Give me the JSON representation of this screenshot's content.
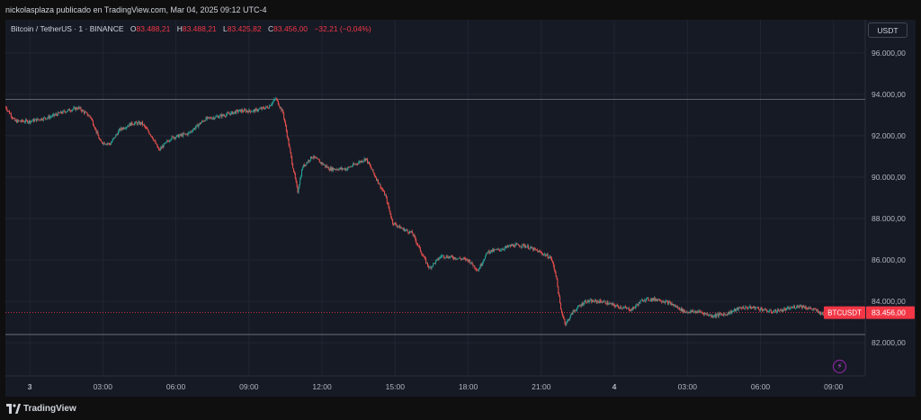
{
  "header": {
    "publisher_line": "nickolasplaza publicado en TradingView.com, Mar 04, 2025 09:12 UTC-4"
  },
  "legend": {
    "symbol": "Bitcoin / TetherUS · 1 · BINANCE",
    "open_key": "O",
    "open": "83.488,21",
    "high_key": "H",
    "high": "83.488,21",
    "low_key": "L",
    "low": "83.425,82",
    "close_key": "C",
    "close": "83.456,00",
    "change": "−32,21 (−0,04%)"
  },
  "toolbar": {
    "currency_label": "USDT"
  },
  "colors": {
    "background": "#161a25",
    "up": "#26a69a",
    "down": "#ef5350",
    "grid": "#222633",
    "price_line": "#f23645",
    "text": "#b2b5be"
  },
  "chart_data": {
    "type": "candlestick",
    "symbol": "BTCUSDT",
    "interval": "1",
    "exchange": "BINANCE",
    "y_tick_labels": [
      "82.000,00",
      "84.000,00",
      "86.000,00",
      "88.000,00",
      "90.000,00",
      "92.000,00",
      "94.000,00",
      "96.000,00"
    ],
    "y_tick_values": [
      82000,
      84000,
      86000,
      88000,
      90000,
      92000,
      94000,
      96000
    ],
    "ylim": [
      80400,
      97600
    ],
    "x_tick_labels": [
      "3",
      "03:00",
      "06:00",
      "09:00",
      "12:00",
      "15:00",
      "18:00",
      "21:00",
      "4",
      "03:00",
      "06:00",
      "09:00"
    ],
    "x_tick_hours": [
      0,
      3,
      6,
      9,
      12,
      15,
      18,
      21,
      24,
      27,
      30,
      33
    ],
    "x_axis_day_labels": [
      "3",
      "4"
    ],
    "xlim_hours": [
      -1.0,
      34.3
    ],
    "last_price": 83456,
    "last_price_label": "83.456,00",
    "last_price_tag": "BTCUSDT",
    "horizontal_lines": [
      93750,
      82400
    ],
    "path_points": [
      {
        "t": -1.0,
        "p": 93400
      },
      {
        "t": -0.6,
        "p": 92700
      },
      {
        "t": 0.0,
        "p": 92700
      },
      {
        "t": 0.8,
        "p": 92900
      },
      {
        "t": 1.5,
        "p": 93200
      },
      {
        "t": 2.0,
        "p": 93350
      },
      {
        "t": 2.5,
        "p": 92900
      },
      {
        "t": 2.9,
        "p": 91700
      },
      {
        "t": 3.3,
        "p": 91600
      },
      {
        "t": 3.7,
        "p": 92300
      },
      {
        "t": 4.2,
        "p": 92600
      },
      {
        "t": 4.6,
        "p": 92600
      },
      {
        "t": 5.0,
        "p": 92000
      },
      {
        "t": 5.3,
        "p": 91300
      },
      {
        "t": 5.8,
        "p": 91900
      },
      {
        "t": 6.5,
        "p": 92100
      },
      {
        "t": 7.2,
        "p": 92800
      },
      {
        "t": 8.0,
        "p": 93000
      },
      {
        "t": 8.6,
        "p": 93200
      },
      {
        "t": 9.2,
        "p": 93200
      },
      {
        "t": 9.8,
        "p": 93400
      },
      {
        "t": 10.1,
        "p": 93800
      },
      {
        "t": 10.4,
        "p": 93100
      },
      {
        "t": 10.8,
        "p": 90500
      },
      {
        "t": 11.0,
        "p": 89300
      },
      {
        "t": 11.2,
        "p": 90500
      },
      {
        "t": 11.6,
        "p": 91000
      },
      {
        "t": 12.3,
        "p": 90400
      },
      {
        "t": 13.0,
        "p": 90400
      },
      {
        "t": 13.8,
        "p": 90900
      },
      {
        "t": 14.2,
        "p": 90000
      },
      {
        "t": 14.6,
        "p": 89100
      },
      {
        "t": 14.9,
        "p": 87800
      },
      {
        "t": 15.3,
        "p": 87500
      },
      {
        "t": 15.7,
        "p": 87300
      },
      {
        "t": 16.1,
        "p": 86300
      },
      {
        "t": 16.4,
        "p": 85600
      },
      {
        "t": 16.9,
        "p": 86200
      },
      {
        "t": 17.5,
        "p": 86100
      },
      {
        "t": 18.0,
        "p": 86000
      },
      {
        "t": 18.4,
        "p": 85500
      },
      {
        "t": 18.8,
        "p": 86400
      },
      {
        "t": 19.3,
        "p": 86500
      },
      {
        "t": 19.8,
        "p": 86700
      },
      {
        "t": 20.3,
        "p": 86700
      },
      {
        "t": 20.9,
        "p": 86400
      },
      {
        "t": 21.4,
        "p": 86100
      },
      {
        "t": 21.6,
        "p": 85300
      },
      {
        "t": 21.8,
        "p": 83600
      },
      {
        "t": 22.0,
        "p": 82900
      },
      {
        "t": 22.3,
        "p": 83500
      },
      {
        "t": 22.8,
        "p": 84000
      },
      {
        "t": 23.5,
        "p": 84000
      },
      {
        "t": 24.0,
        "p": 83800
      },
      {
        "t": 24.7,
        "p": 83600
      },
      {
        "t": 25.2,
        "p": 84100
      },
      {
        "t": 25.8,
        "p": 84100
      },
      {
        "t": 26.3,
        "p": 83900
      },
      {
        "t": 26.9,
        "p": 83500
      },
      {
        "t": 27.5,
        "p": 83500
      },
      {
        "t": 28.0,
        "p": 83300
      },
      {
        "t": 28.6,
        "p": 83400
      },
      {
        "t": 29.2,
        "p": 83700
      },
      {
        "t": 29.8,
        "p": 83700
      },
      {
        "t": 30.4,
        "p": 83500
      },
      {
        "t": 31.0,
        "p": 83600
      },
      {
        "t": 31.6,
        "p": 83800
      },
      {
        "t": 32.2,
        "p": 83600
      },
      {
        "t": 32.7,
        "p": 83300
      },
      {
        "t": 33.1,
        "p": 83450
      },
      {
        "t": 33.5,
        "p": 83456
      }
    ]
  }
}
